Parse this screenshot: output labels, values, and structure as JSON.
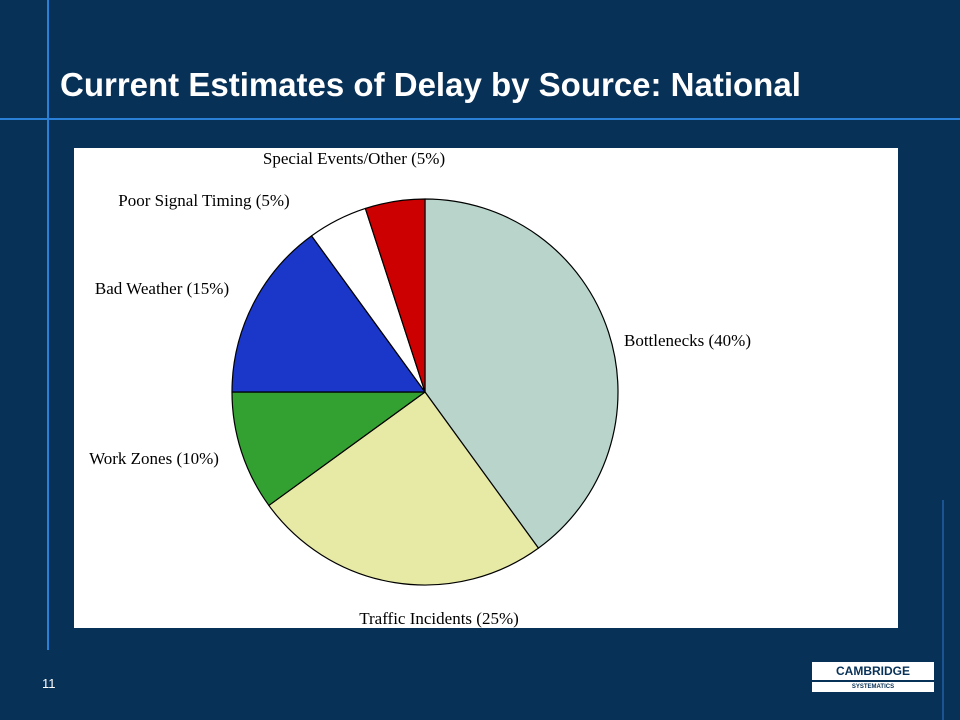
{
  "slide": {
    "title": "Current Estimates of Delay by Source: National",
    "page_number": "11",
    "logo_top": "CAMBRIDGE",
    "logo_bottom": "SYSTEMATICS"
  },
  "colors": {
    "background": "#083158",
    "accent_line": "#2a7fd6"
  },
  "chart_data": {
    "type": "pie",
    "title": "",
    "start": "12 o'clock",
    "direction": "clockwise",
    "slices": [
      {
        "label": "Bottlenecks (40%)",
        "value": 40,
        "color": "#b9d5cb"
      },
      {
        "label": "Traffic Incidents (25%)",
        "value": 25,
        "color": "#e7eaa4"
      },
      {
        "label": "Work Zones (10%)",
        "value": 10,
        "color": "#33a132"
      },
      {
        "label": "Bad Weather (15%)",
        "value": 15,
        "color": "#1a37c9"
      },
      {
        "label": "Poor Signal Timing (5%)",
        "value": 5,
        "color": "#ffffff"
      },
      {
        "label": "Special Events/Other (5%)",
        "value": 5,
        "color": "#cc0000"
      }
    ]
  }
}
